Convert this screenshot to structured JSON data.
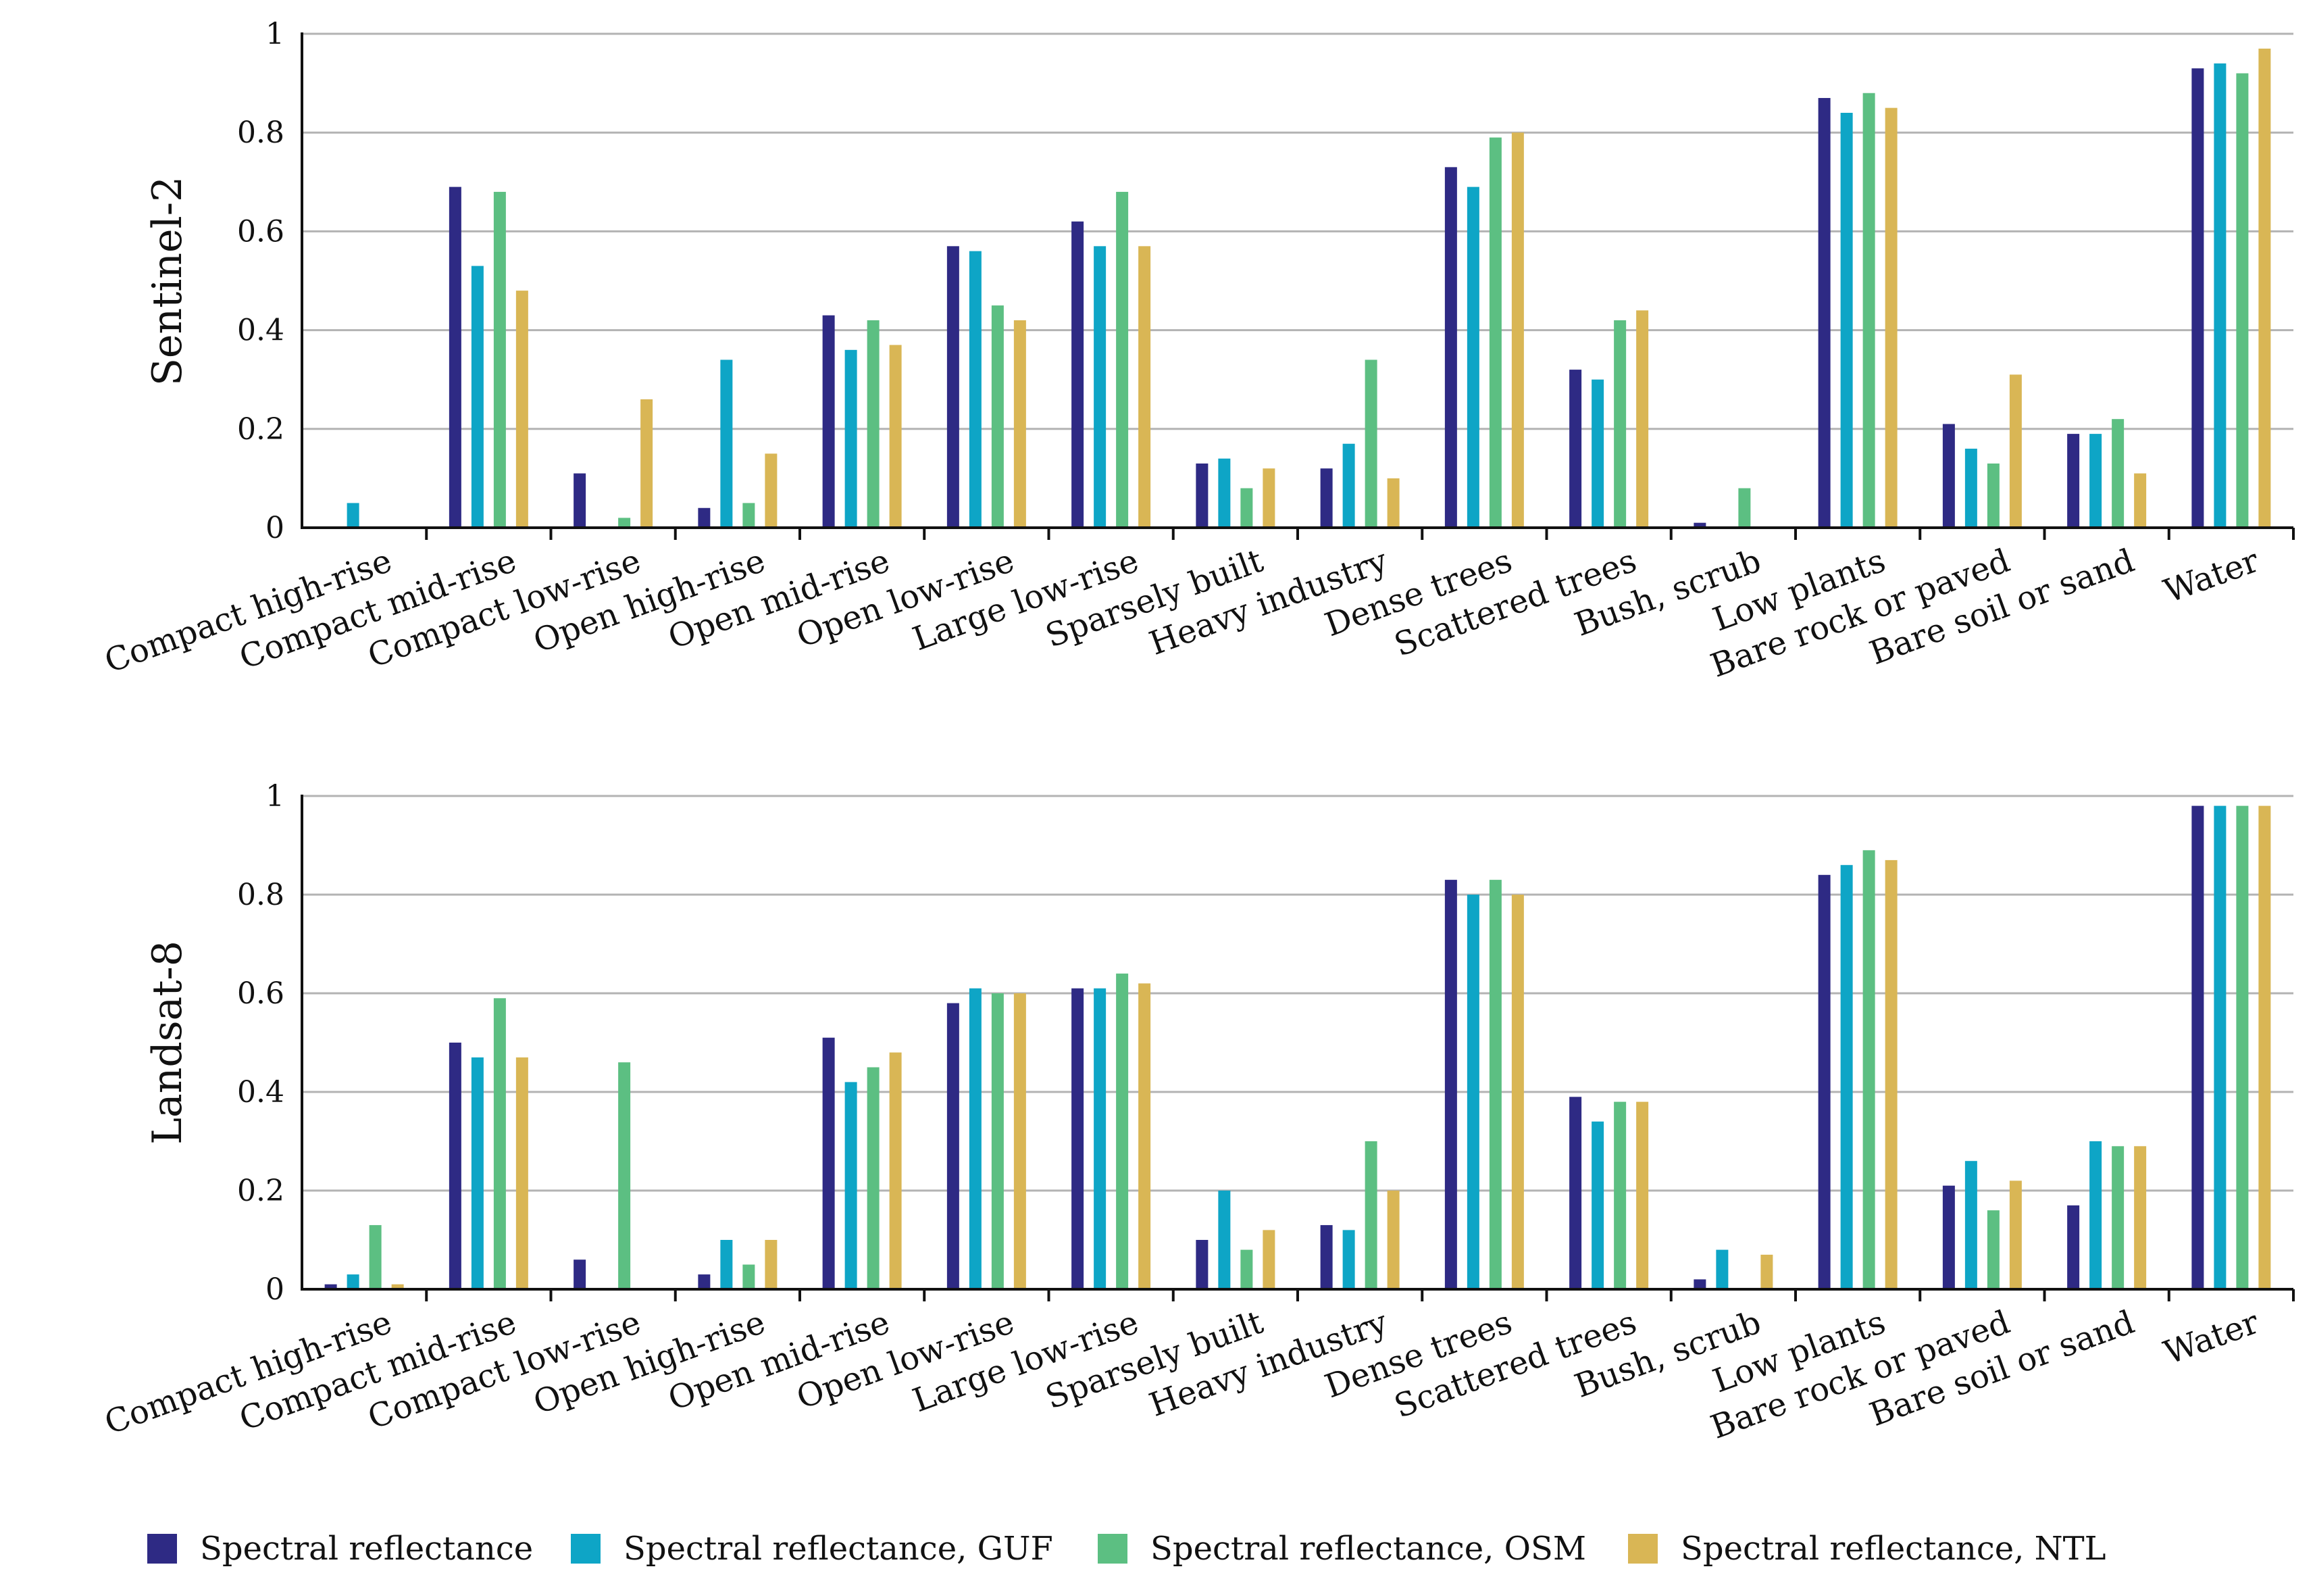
{
  "legend": {
    "entries": [
      "Spectral reflectance",
      "Spectral reflectance, GUF",
      "Spectral reflectance, OSM",
      "Spectral reflectance, NTL"
    ]
  },
  "colors": {
    "series": [
      "#2e2a84",
      "#0ea5c6",
      "#5cbf82",
      "#d9b655"
    ],
    "grid": "#b3b3b3",
    "axis": "#111111"
  },
  "chart_data": [
    {
      "type": "bar",
      "title": "",
      "ylabel": "Sentinel-2",
      "xlabel": "",
      "ylim": [
        0,
        1
      ],
      "yticks": [
        "0",
        "0.2",
        "0.4",
        "0.6",
        "0.8",
        "1"
      ],
      "grid": true,
      "legend_position": "bottom",
      "categories": [
        "Compact high-rise",
        "Compact mid-rise",
        "Compact low-rise",
        "Open high-rise",
        "Open mid-rise",
        "Open low-rise",
        "Large low-rise",
        "Sparsely built",
        "Heavy industry",
        "Dense trees",
        "Scattered trees",
        "Bush, scrub",
        "Low plants",
        "Bare rock or paved",
        "Bare soil or sand",
        "Water"
      ],
      "series": [
        {
          "name": "Spectral reflectance",
          "values": [
            0.0,
            0.69,
            0.11,
            0.04,
            0.43,
            0.57,
            0.62,
            0.13,
            0.12,
            0.73,
            0.32,
            0.01,
            0.87,
            0.21,
            0.19,
            0.93
          ]
        },
        {
          "name": "Spectral reflectance, GUF",
          "values": [
            0.05,
            0.53,
            0.0,
            0.34,
            0.36,
            0.56,
            0.57,
            0.14,
            0.17,
            0.69,
            0.3,
            0.0,
            0.84,
            0.16,
            0.19,
            0.94
          ]
        },
        {
          "name": "Spectral reflectance, OSM",
          "values": [
            0.0,
            0.68,
            0.02,
            0.05,
            0.42,
            0.45,
            0.68,
            0.08,
            0.34,
            0.79,
            0.42,
            0.08,
            0.88,
            0.13,
            0.22,
            0.92
          ]
        },
        {
          "name": "Spectral reflectance, NTL",
          "values": [
            0.0,
            0.48,
            0.26,
            0.15,
            0.37,
            0.42,
            0.57,
            0.12,
            0.1,
            0.8,
            0.44,
            0.0,
            0.85,
            0.31,
            0.11,
            0.97
          ]
        }
      ]
    },
    {
      "type": "bar",
      "title": "",
      "ylabel": "Landsat-8",
      "xlabel": "",
      "ylim": [
        0,
        1
      ],
      "yticks": [
        "0",
        "0.2",
        "0.4",
        "0.6",
        "0.8",
        "1"
      ],
      "grid": true,
      "legend_position": "bottom",
      "categories": [
        "Compact high-rise",
        "Compact mid-rise",
        "Compact low-rise",
        "Open high-rise",
        "Open mid-rise",
        "Open low-rise",
        "Large low-rise",
        "Sparsely built",
        "Heavy industry",
        "Dense trees",
        "Scattered trees",
        "Bush, scrub",
        "Low plants",
        "Bare rock or paved",
        "Bare soil or sand",
        "Water"
      ],
      "series": [
        {
          "name": "Spectral reflectance",
          "values": [
            0.01,
            0.5,
            0.06,
            0.03,
            0.51,
            0.58,
            0.61,
            0.1,
            0.13,
            0.83,
            0.39,
            0.02,
            0.84,
            0.21,
            0.17,
            0.98
          ]
        },
        {
          "name": "Spectral reflectance, GUF",
          "values": [
            0.03,
            0.47,
            0.0,
            0.1,
            0.42,
            0.61,
            0.61,
            0.2,
            0.12,
            0.8,
            0.34,
            0.08,
            0.86,
            0.26,
            0.3,
            0.98
          ]
        },
        {
          "name": "Spectral reflectance, OSM",
          "values": [
            0.13,
            0.59,
            0.46,
            0.05,
            0.45,
            0.6,
            0.64,
            0.08,
            0.3,
            0.83,
            0.38,
            0.0,
            0.89,
            0.16,
            0.29,
            0.98
          ]
        },
        {
          "name": "Spectral reflectance, NTL",
          "values": [
            0.01,
            0.47,
            0.0,
            0.1,
            0.48,
            0.6,
            0.62,
            0.12,
            0.2,
            0.8,
            0.38,
            0.07,
            0.87,
            0.22,
            0.29,
            0.98
          ]
        }
      ]
    }
  ]
}
